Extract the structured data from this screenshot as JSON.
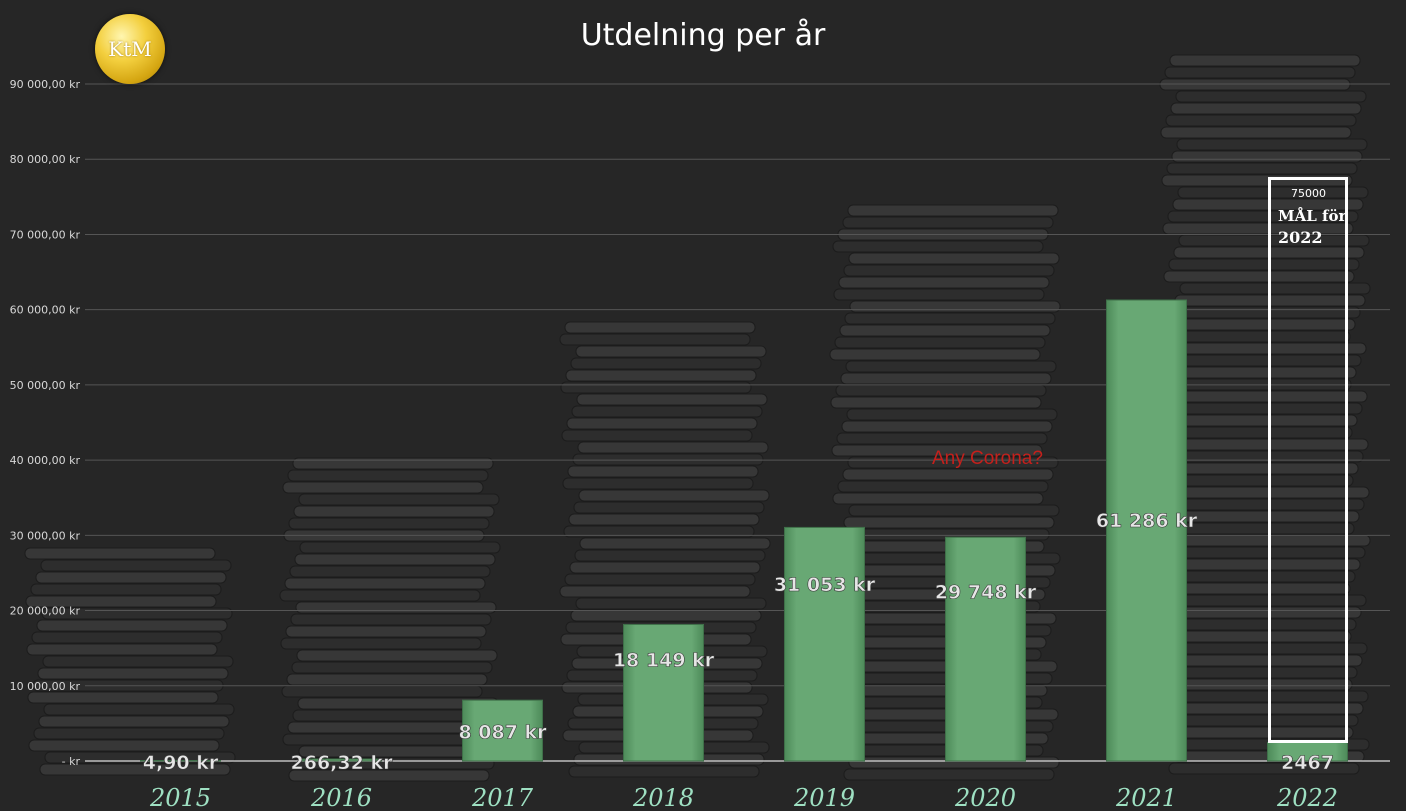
{
  "logo_text": "KtM",
  "chart_data": {
    "type": "bar",
    "title": "Utdelning per år",
    "categories": [
      "2015",
      "2016",
      "2017",
      "2018",
      "2019",
      "2020",
      "2021",
      "2022"
    ],
    "values": [
      4.9,
      266.32,
      8087,
      18149,
      31053,
      29748,
      61286,
      2467
    ],
    "data_labels": [
      "4,90 kr",
      "266,32 kr",
      "8 087 kr",
      "18 149 kr",
      "31 053 kr",
      "29 748 kr",
      "61 286 kr",
      "2467"
    ],
    "ylim": [
      0,
      90000
    ],
    "y_ticks": [
      0,
      10000,
      20000,
      30000,
      40000,
      50000,
      60000,
      70000,
      80000,
      90000
    ],
    "y_tick_labels": [
      "-   kr",
      "10 000,00 kr",
      "20 000,00 kr",
      "30 000,00 kr",
      "40 000,00 kr",
      "50 000,00 kr",
      "60 000,00 kr",
      "70 000,00 kr",
      "80 000,00 kr",
      "90 000,00 kr"
    ],
    "grid": true,
    "legend": "none",
    "bar_color": "#5d9e6a",
    "background_color": "#262626",
    "annotation": "Any Corona?",
    "annotation_color": "#c4201c",
    "goal": {
      "category": "2022",
      "value": 75000,
      "value_label": "75000",
      "label": "MÅL för",
      "label_year": "2022"
    }
  }
}
